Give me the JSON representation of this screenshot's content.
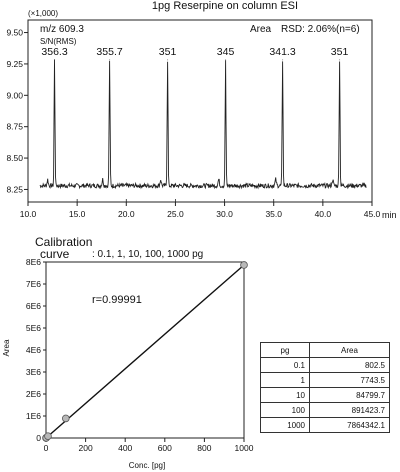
{
  "chart_data": [
    {
      "type": "line",
      "title": "1pg Reserpine on column ESI",
      "scale_note": "(×1,000)",
      "xlabel": "min",
      "xlim": [
        10.0,
        45.0
      ],
      "ylim": [
        8.15,
        9.6
      ],
      "x_ticks": [
        "10.0",
        "15.0",
        "20.0",
        "25.0",
        "30.0",
        "35.0",
        "40.0",
        "45.0"
      ],
      "y_ticks": [
        "8.25",
        "8.50",
        "8.75",
        "9.00",
        "9.25",
        "9.50"
      ],
      "annotations": {
        "mz": "m/z 609.3",
        "sn": "S/N(RMS)",
        "area": "Area",
        "rsd": "RSD: 2.06%(n=6)"
      },
      "baseline": 8.28,
      "peaks": [
        {
          "x": 12.7,
          "y": 9.28,
          "label": "356.3"
        },
        {
          "x": 18.3,
          "y": 9.28,
          "label": "355.7"
        },
        {
          "x": 24.2,
          "y": 9.28,
          "label": "351"
        },
        {
          "x": 30.1,
          "y": 9.28,
          "label": "345"
        },
        {
          "x": 35.9,
          "y": 9.28,
          "label": "341.3"
        },
        {
          "x": 41.7,
          "y": 9.28,
          "label": "351"
        }
      ]
    },
    {
      "type": "scatter",
      "title": "Calibration curve",
      "subtitle": ": 0.1, 1, 10, 100, 1000 pg",
      "xlabel": "Conc. [pg]",
      "ylabel": "Area",
      "xlim": [
        0,
        1000
      ],
      "ylim": [
        0,
        8000000
      ],
      "x_ticks": [
        "0",
        "200",
        "400",
        "600",
        "800",
        "1000"
      ],
      "y_ticks": [
        "0",
        "1E6",
        "2E6",
        "3E6",
        "4E6",
        "5E6",
        "6E6",
        "7E6",
        "8E6"
      ],
      "r_text": "r=0.99991",
      "points": [
        {
          "x": 0.1,
          "y": 802.5
        },
        {
          "x": 1,
          "y": 7743.5
        },
        {
          "x": 10,
          "y": 84799.7
        },
        {
          "x": 100,
          "y": 891423.7
        },
        {
          "x": 1000,
          "y": 7864342.1
        }
      ]
    },
    {
      "type": "table",
      "headers": [
        "pg",
        "Area"
      ],
      "rows": [
        [
          "0.1",
          "802.5"
        ],
        [
          "1",
          "7743.5"
        ],
        [
          "10",
          "84799.7"
        ],
        [
          "100",
          "891423.7"
        ],
        [
          "1000",
          "7864342.1"
        ]
      ]
    }
  ]
}
